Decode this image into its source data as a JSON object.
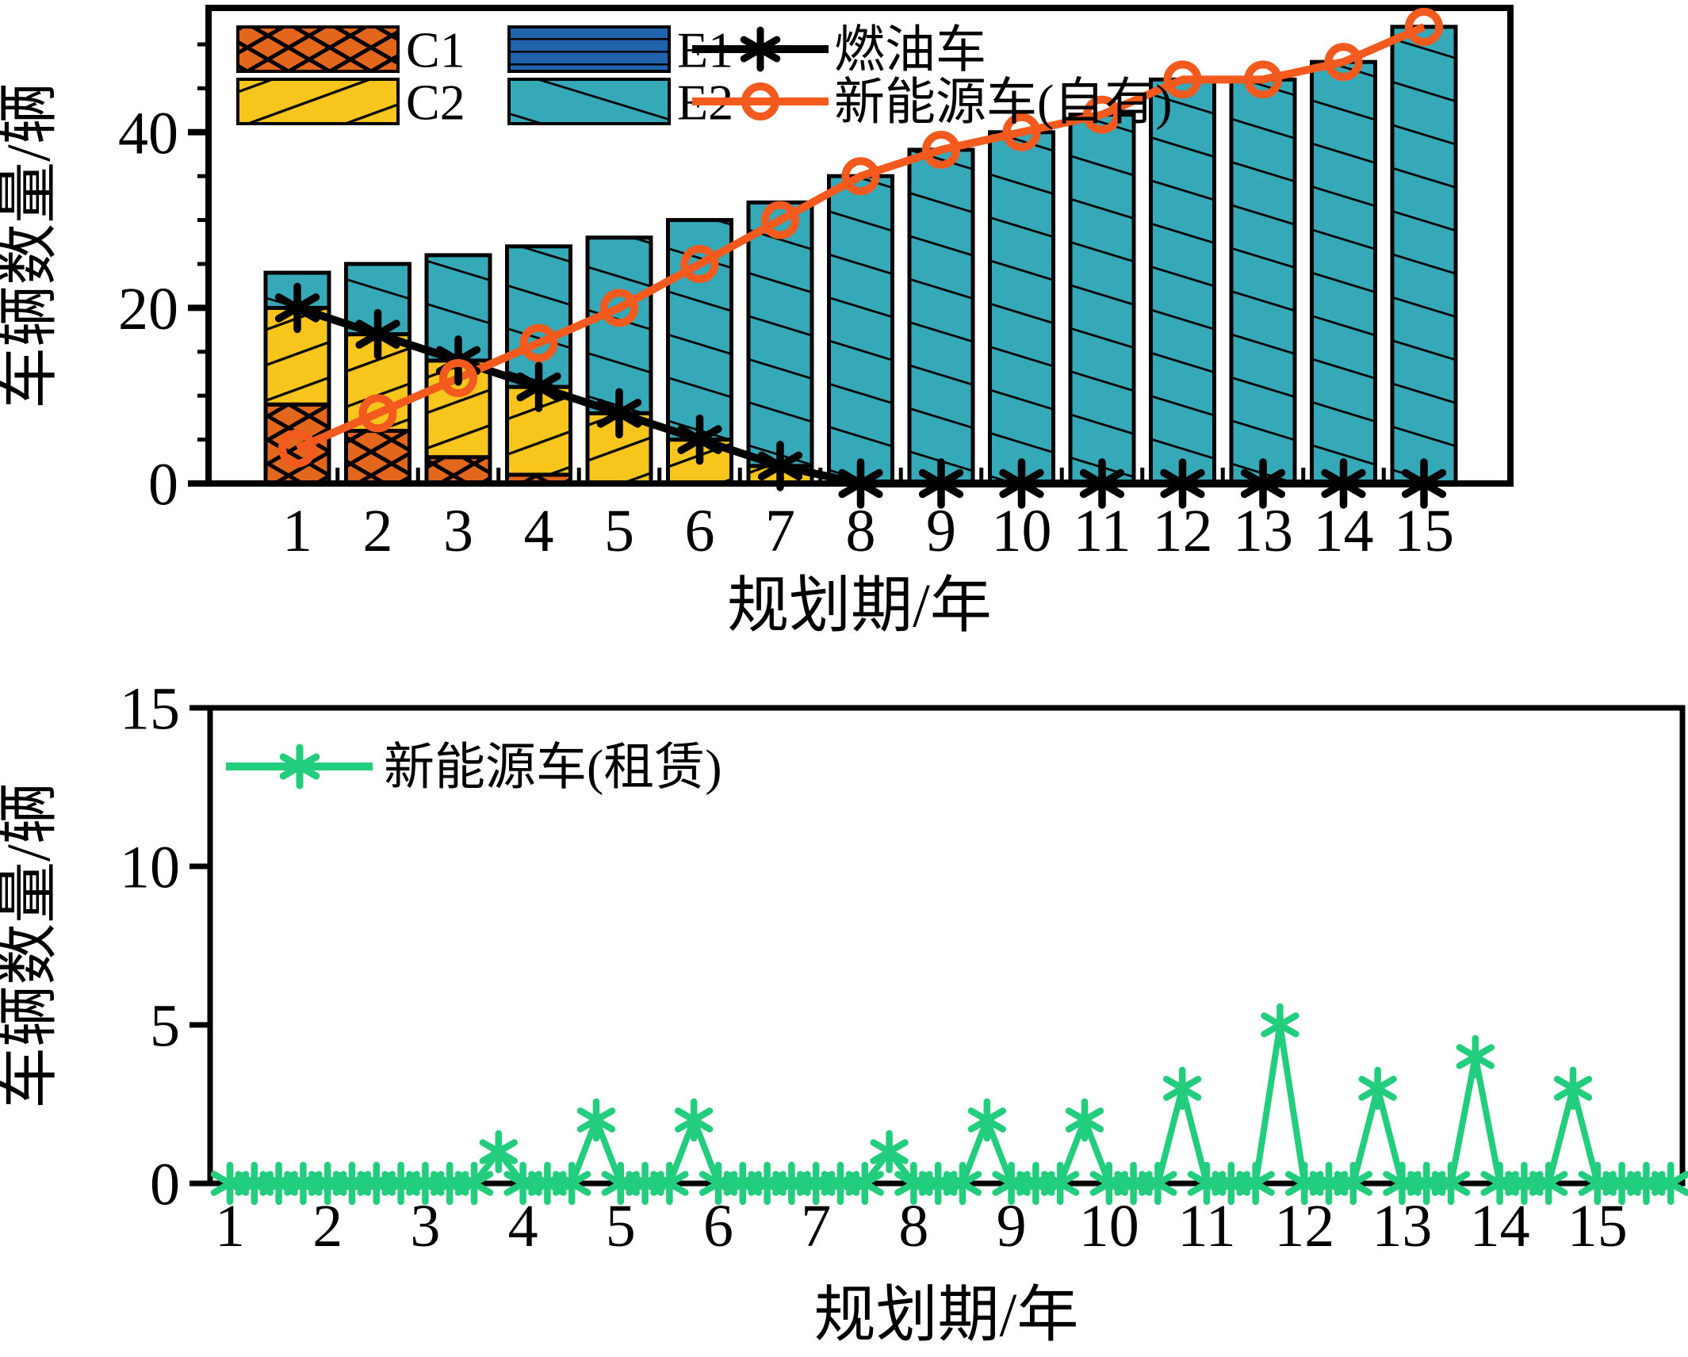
{
  "figure_background": "#ffffff",
  "text_color": "#000000",
  "chart_data": [
    {
      "id": "fleet-composition",
      "type": "bar",
      "title": "",
      "xlabel": "规划期/年",
      "ylabel": "车辆数量/辆",
      "categories": [
        1,
        2,
        3,
        4,
        5,
        6,
        7,
        8,
        9,
        10,
        11,
        12,
        13,
        14,
        15
      ],
      "xticks": [
        "1",
        "2",
        "3",
        "4",
        "5",
        "6",
        "7",
        "8",
        "9",
        "10",
        "11",
        "12",
        "13",
        "14",
        "15"
      ],
      "yticks": [
        0,
        20,
        40
      ],
      "ylim": [
        0,
        54.2
      ],
      "grid": false,
      "legend_position": "upper-left-inside",
      "bar_series": [
        {
          "name": "C1",
          "color": "#e2661c",
          "hatch": "crosshatch",
          "values": [
            9,
            6,
            3,
            1,
            0,
            0,
            0,
            0,
            0,
            0,
            0,
            0,
            0,
            0,
            0
          ]
        },
        {
          "name": "C2",
          "color": "#f7c51c",
          "hatch": "slash",
          "values": [
            11,
            11,
            11,
            10,
            8,
            5,
            2,
            0,
            0,
            0,
            0,
            0,
            0,
            0,
            0
          ]
        },
        {
          "name": "E1",
          "color": "#2064ae",
          "hatch": "horizontal",
          "values": [
            0,
            0,
            0,
            0,
            0,
            0,
            0,
            0,
            0,
            0,
            0,
            0,
            0,
            0,
            0
          ]
        },
        {
          "name": "E2",
          "color": "#36a9b8",
          "hatch": "backslash",
          "values": [
            4,
            8,
            12,
            16,
            20,
            25,
            30,
            35,
            38,
            40,
            42,
            46,
            46,
            48,
            52
          ]
        }
      ],
      "line_series": [
        {
          "name": "燃油车",
          "color": "#000000",
          "marker": "asterisk",
          "values": [
            20,
            17,
            14,
            11,
            8,
            5,
            2,
            0,
            0,
            0,
            0,
            0,
            0,
            0,
            0
          ]
        },
        {
          "name": "新能源车(自有)",
          "color": "#f4591d",
          "marker": "circle",
          "values": [
            4,
            8,
            12,
            16,
            20,
            25,
            30,
            35,
            38,
            40,
            42,
            46,
            46,
            48,
            52
          ]
        }
      ]
    },
    {
      "id": "leased-nev",
      "type": "line",
      "title": "",
      "xlabel": "规划期/年",
      "ylabel": "车辆数量/辆",
      "xticks": [
        "1",
        "2",
        "3",
        "4",
        "5",
        "6",
        "7",
        "8",
        "9",
        "10",
        "11",
        "12",
        "13",
        "14",
        "15"
      ],
      "yticks": [
        0,
        5,
        10,
        15
      ],
      "ylim": [
        0,
        15
      ],
      "grid": false,
      "legend_position": "upper-left-inside",
      "line_series": [
        {
          "name": "新能源车(租赁)",
          "color": "#22ce7d",
          "marker": "asterisk",
          "x_start": 1,
          "x_step": 0.25,
          "values": [
            0,
            0,
            0,
            0,
            0,
            0,
            0,
            0,
            0,
            0,
            0,
            1,
            0,
            0,
            0,
            2,
            0,
            0,
            0,
            2,
            0,
            0,
            0,
            0,
            0,
            0,
            0,
            1,
            0,
            0,
            0,
            2,
            0,
            0,
            0,
            2,
            0,
            0,
            0,
            3,
            0,
            0,
            0,
            5,
            0,
            0,
            0,
            3,
            0,
            0,
            0,
            4,
            0,
            0,
            0,
            3,
            0,
            0,
            0,
            0
          ]
        }
      ]
    }
  ]
}
